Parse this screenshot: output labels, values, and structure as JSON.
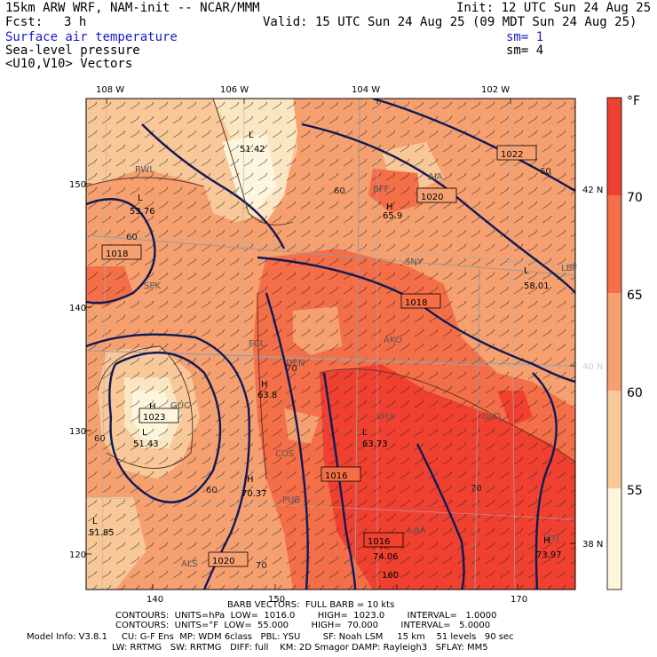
{
  "header": {
    "model": "15km ARW WRF, NAM-init -- NCAR/MMM",
    "init": "Init: 12 UTC Sun 24 Aug 25",
    "fcst_label": "Fcst:",
    "fcst_value": "3 h",
    "valid": "Valid: 15 UTC Sun 24 Aug 25 (09 MDT Sun 24 Aug 25)",
    "field1": "Surface air temperature",
    "field2": "Sea-level pressure",
    "field3": "<U10,V10> Vectors",
    "sm1": "sm= 1",
    "sm2": "sm= 4"
  },
  "map": {
    "lon_labels_top": [
      "108 W",
      "106 W",
      "104 W",
      "102 W"
    ],
    "lat_labels_right": [
      "42 N",
      "40 N",
      "38 N"
    ],
    "grid_y_labels": [
      "150",
      "140",
      "130",
      "120"
    ],
    "grid_x_labels": [
      "140",
      "150",
      "160",
      "170"
    ],
    "stations": [
      "RWL",
      "BFF",
      "AIA",
      "SNY",
      "LBF",
      "SPK",
      "FCL",
      "DEN",
      "AKO",
      "GLD",
      "LHX",
      "COS",
      "PUB",
      "GUC",
      "ALS",
      "LAA",
      "MTJ"
    ],
    "highs": [
      {
        "letter": "H",
        "value": "65.9"
      },
      {
        "letter": "H",
        "value": "63.8"
      },
      {
        "letter": "H",
        "value": "70.37"
      },
      {
        "letter": "H",
        "value": "74.06"
      },
      {
        "letter": "H",
        "value": "73.97"
      },
      {
        "letter": "H",
        "value": "1023"
      }
    ],
    "lows": [
      {
        "letter": "L",
        "value": "51.42"
      },
      {
        "letter": "L",
        "value": "53.76"
      },
      {
        "letter": "L",
        "value": "51.43"
      },
      {
        "letter": "L",
        "value": "58.01"
      },
      {
        "letter": "L",
        "value": "63.73"
      },
      {
        "letter": "L",
        "value": "51.85"
      }
    ],
    "pressure_labels": [
      "1022",
      "1020",
      "1018",
      "1018",
      "1016",
      "1016",
      "1020"
    ],
    "temp_contour_labels": [
      "60",
      "60",
      "60",
      "60",
      "70",
      "70",
      "70",
      "60"
    ]
  },
  "colorbar": {
    "unit": "°F",
    "labels": [
      "70",
      "65",
      "60",
      "55"
    ],
    "colors": [
      "#f04030",
      "#f46e48",
      "#f6a070",
      "#f8c898",
      "#fbe6c2",
      "#fdf5dc"
    ]
  },
  "footer": {
    "barb": "BARB VECTORS:  FULL BARB = 10 kts",
    "contours1": "CONTOURS:  UNITS=hPa  LOW=  1016.0        HIGH=  1023.0        INTERVAL=   1.0000",
    "contours2": "CONTOURS:  UNITS=°F  LOW=  55.000        HIGH=  70.000        INTERVAL=   5.0000",
    "model1": "Model Info: V3.8.1     CU: G-F Ens  MP: WDM 6class   PBL: YSU        SF: Noah LSM     15 km    51 levels   90 sec",
    "model2": "LW: RRTMG   SW: RRTMG   DIFF: full    KM: 2D Smagor DAMP: Rayleigh3   SFLAY: MM5"
  }
}
